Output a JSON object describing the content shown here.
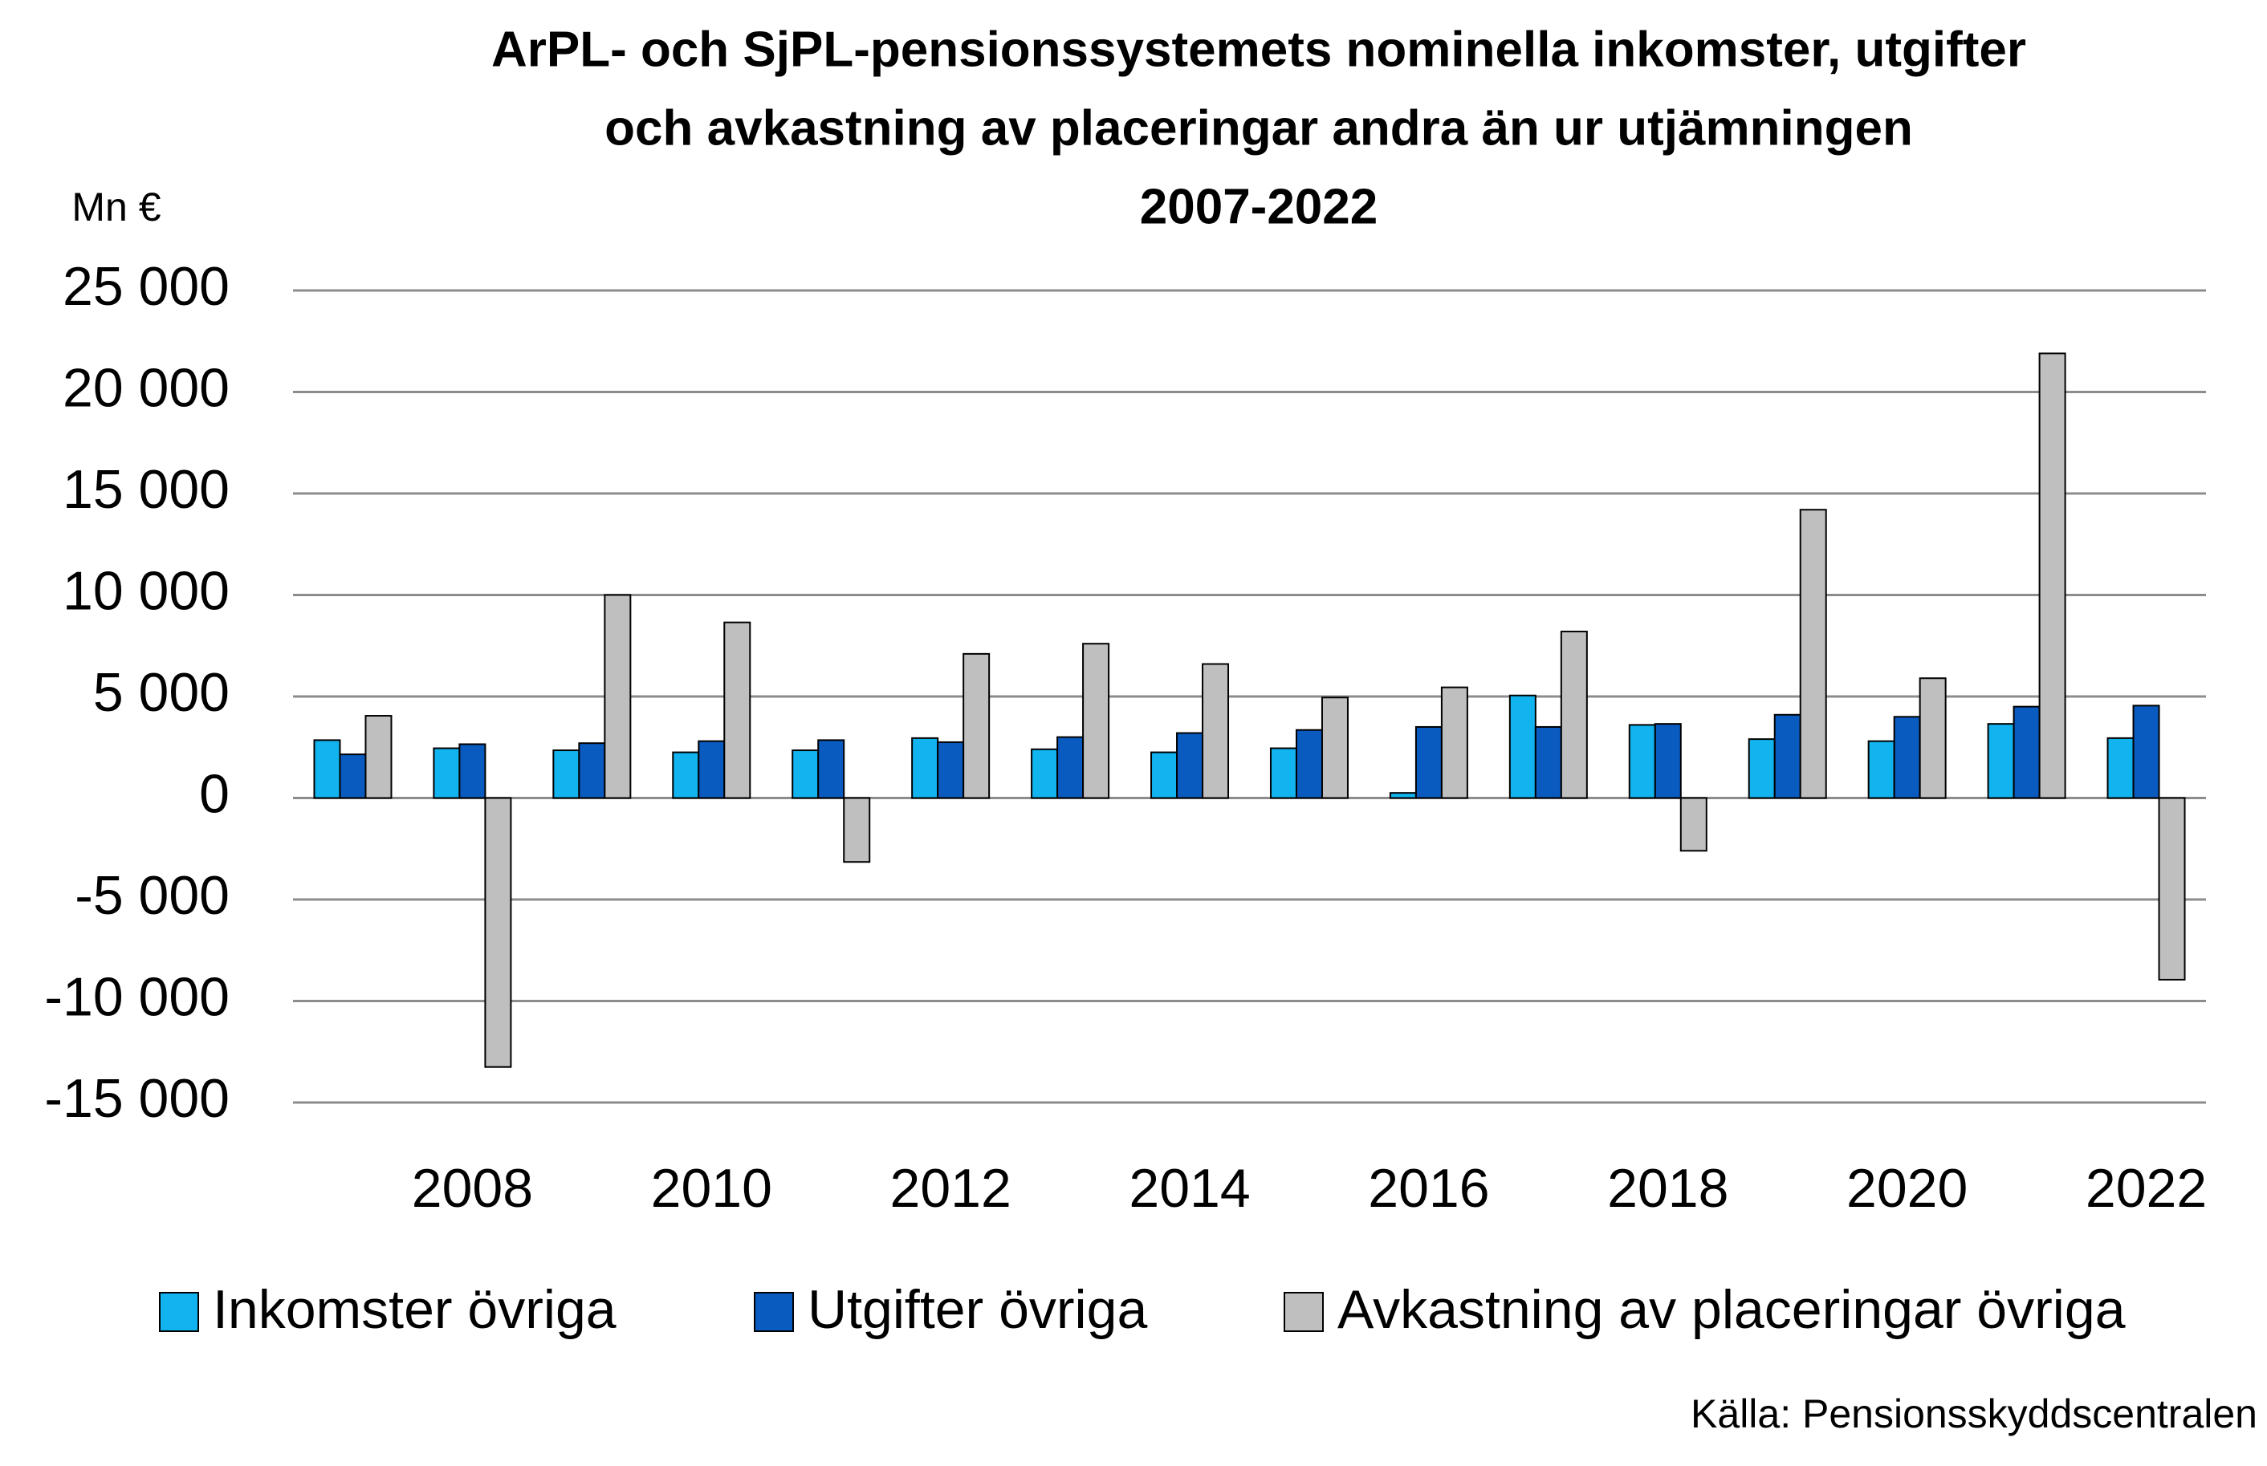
{
  "chart_data": {
    "type": "bar",
    "title": [
      "ArPL- och SjPL-pensionssystemets nominella inkomster, utgifter",
      "och avkastning av placeringar andra än ur utjämningen",
      "2007-2022"
    ],
    "y_axis_label": "Mn €",
    "source": "Källa: Pensionsskyddscentralen",
    "categories": [
      null,
      "2008",
      null,
      "2010",
      null,
      "2012",
      null,
      "2014",
      null,
      "2016",
      null,
      "2018",
      null,
      "2020",
      null,
      "2022"
    ],
    "series": [
      {
        "name": "Inkomster övriga",
        "color": "#12b4f0",
        "values": [
          2850,
          2450,
          2350,
          2250,
          2350,
          2950,
          2400,
          2250,
          2450,
          250,
          5050,
          3600,
          2900,
          2800,
          3650,
          2950
        ]
      },
      {
        "name": "Utgifter övriga",
        "color": "#0a5bc0",
        "values": [
          2150,
          2650,
          2700,
          2800,
          2850,
          2750,
          3000,
          3200,
          3350,
          3500,
          3500,
          3650,
          4100,
          4000,
          4500,
          4550
        ]
      },
      {
        "name": "Avkastning av placeringar övriga",
        "color": "#bfbfbf",
        "values": [
          4050,
          -13250,
          10000,
          8650,
          -3150,
          7100,
          7600,
          6600,
          4950,
          5450,
          8200,
          -2600,
          14200,
          5900,
          21900,
          -8950
        ]
      }
    ],
    "ylim": [
      -15000,
      25000
    ],
    "yticks": [
      {
        "value": -15000,
        "label": "-15 000"
      },
      {
        "value": -10000,
        "label": "-10 000"
      },
      {
        "value": -5000,
        "label": "-5 000"
      },
      0,
      {
        "value": 5000,
        "label": "5 000"
      },
      {
        "value": 10000,
        "label": "10 000"
      },
      {
        "value": 15000,
        "label": "15 000"
      },
      {
        "value": 20000,
        "label": "20 000"
      },
      {
        "value": 25000,
        "label": "25 000"
      }
    ],
    "grid": true,
    "legend": "bottom"
  }
}
